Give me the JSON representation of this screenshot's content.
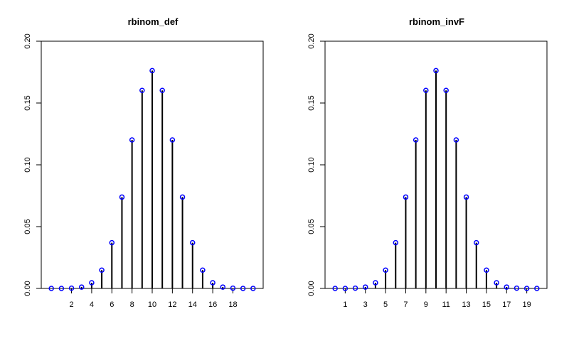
{
  "chart_data": [
    {
      "type": "bar",
      "title": "rbinom_def",
      "xlabel": "",
      "ylabel": "",
      "x": [
        0,
        1,
        2,
        3,
        4,
        5,
        6,
        7,
        8,
        9,
        10,
        11,
        12,
        13,
        14,
        15,
        16,
        17,
        18,
        19,
        20
      ],
      "values": [
        0.0,
        0.0,
        0.0002,
        0.0011,
        0.0046,
        0.0148,
        0.037,
        0.0739,
        0.1201,
        0.1602,
        0.1762,
        0.1602,
        0.1201,
        0.0739,
        0.037,
        0.0148,
        0.0046,
        0.0011,
        0.0002,
        0.0,
        0.0
      ],
      "xticks": [
        2,
        4,
        6,
        8,
        10,
        12,
        14,
        16,
        18
      ],
      "yticks": [
        "0.00",
        "0.05",
        "0.10",
        "0.15",
        "0.20"
      ],
      "xlim": [
        -1,
        21
      ],
      "ylim": [
        0,
        0.2
      ],
      "marker_color": "#0000ff",
      "line_color": "#000000"
    },
    {
      "type": "bar",
      "title": "rbinom_invF",
      "xlabel": "",
      "ylabel": "",
      "x": [
        0,
        1,
        2,
        3,
        4,
        5,
        6,
        7,
        8,
        9,
        10,
        11,
        12,
        13,
        14,
        15,
        16,
        17,
        18,
        19,
        20
      ],
      "values": [
        0.0,
        0.0,
        0.0002,
        0.0011,
        0.0046,
        0.0148,
        0.037,
        0.0739,
        0.1201,
        0.1602,
        0.1762,
        0.1602,
        0.1201,
        0.0739,
        0.037,
        0.0148,
        0.0046,
        0.0011,
        0.0002,
        0.0,
        0.0
      ],
      "xticks": [
        1,
        3,
        5,
        7,
        9,
        11,
        13,
        15,
        17,
        19
      ],
      "yticks": [
        "0.00",
        "0.05",
        "0.10",
        "0.15",
        "0.20"
      ],
      "xlim": [
        -1,
        21
      ],
      "ylim": [
        0,
        0.2
      ],
      "marker_color": "#0000ff",
      "line_color": "#000000"
    }
  ]
}
